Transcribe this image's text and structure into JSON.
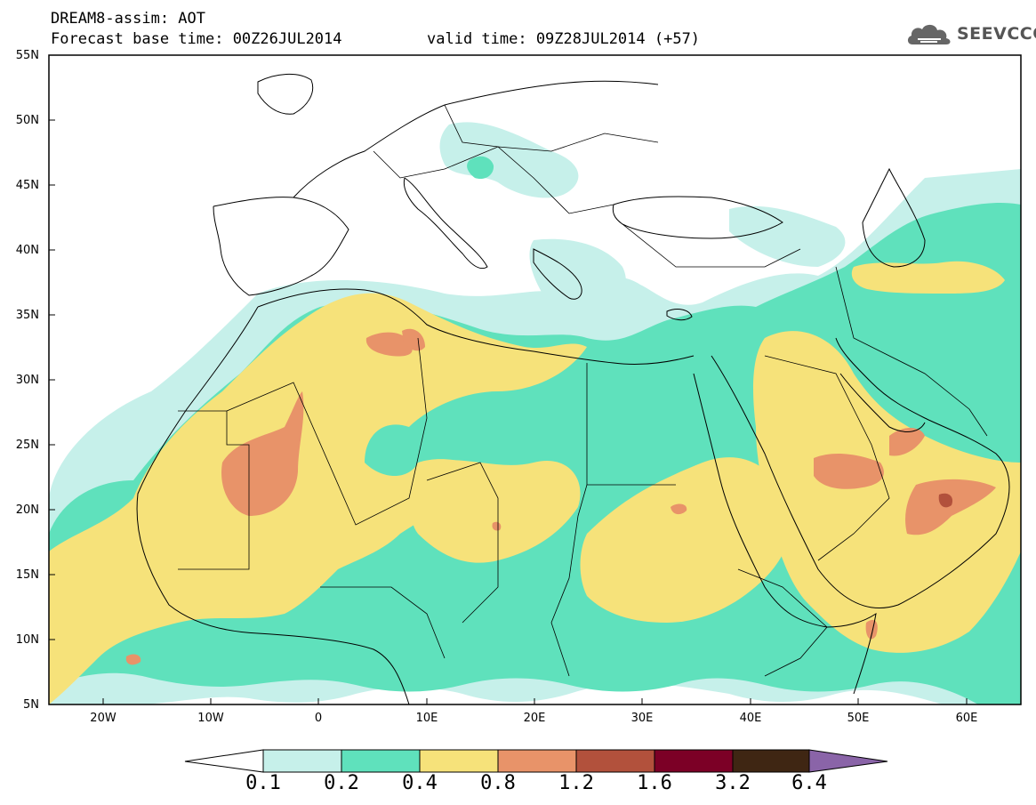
{
  "header": {
    "line1": "DREAM8-assim: AOT",
    "line2": "Forecast base time: 00Z26JUL2014",
    "valid": "valid time: 09Z28JUL2014 (+57)"
  },
  "logo": {
    "text": "SEEVCCC",
    "icon": "cloud-icon"
  },
  "map": {
    "extent": {
      "lon": [
        -25,
        65
      ],
      "lat": [
        5,
        55
      ]
    },
    "lat_labels": [
      "55N",
      "50N",
      "45N",
      "40N",
      "35N",
      "30N",
      "25N",
      "20N",
      "15N",
      "10N",
      "5N"
    ],
    "lon_labels": [
      "20W",
      "10W",
      "0",
      "10E",
      "20E",
      "30E",
      "40E",
      "50E",
      "60E"
    ]
  },
  "colorbar": {
    "labels": [
      "0.1",
      "0.2",
      "0.4",
      "0.8",
      "1.2",
      "1.6",
      "3.2",
      "6.4"
    ],
    "colors": [
      "#ffffff",
      "#c6f0ea",
      "#5fe1bc",
      "#f6e27a",
      "#e89369",
      "#b2513c",
      "#7c0026",
      "#3f2613",
      "#8a64a8"
    ]
  }
}
